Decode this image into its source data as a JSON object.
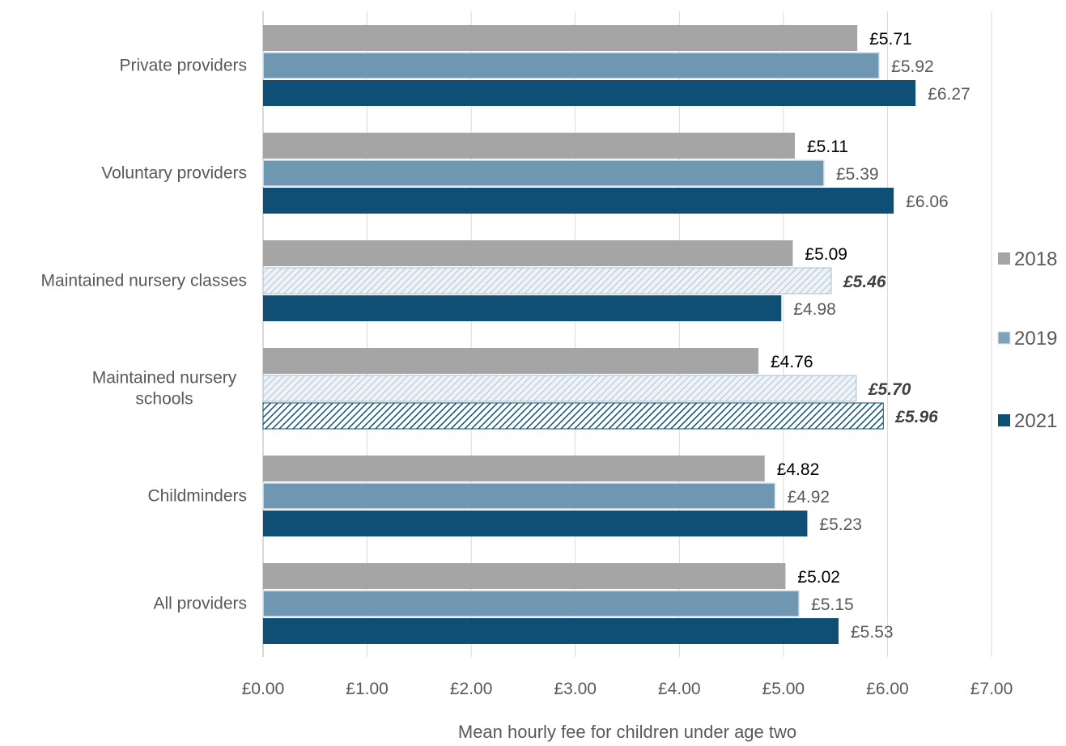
{
  "chart_data": {
    "type": "bar",
    "orientation": "horizontal",
    "title": "",
    "xlabel": "Mean hourly fee for children under age two",
    "ylabel": "",
    "xlim": [
      0,
      7
    ],
    "x_ticks": [
      "£0.00",
      "£1.00",
      "£2.00",
      "£3.00",
      "£4.00",
      "£5.00",
      "£6.00",
      "£7.00"
    ],
    "grid": "vertical",
    "legend_position": "right",
    "categories": [
      [
        "Private providers"
      ],
      [
        "Voluntary providers"
      ],
      [
        "Maintained nursery classes"
      ],
      [
        "Maintained nursery",
        "schools"
      ],
      [
        "Childminders"
      ],
      [
        "All providers"
      ]
    ],
    "series": [
      {
        "name": "2018",
        "color": "#a5a5a5",
        "values": [
          5.71,
          5.11,
          5.09,
          4.76,
          4.82,
          5.02
        ],
        "labels": [
          "£5.71",
          "£5.11",
          "£5.09",
          "£4.76",
          "£4.82",
          "£5.02"
        ],
        "hatched": [
          false,
          false,
          false,
          false,
          false,
          false
        ]
      },
      {
        "name": "2019",
        "color": "#6f97b2",
        "values": [
          5.92,
          5.39,
          5.46,
          5.7,
          4.92,
          5.15
        ],
        "labels": [
          "£5.92",
          "£5.39",
          "£5.46",
          "£5.70",
          "£4.92",
          "£5.15"
        ],
        "hatched": [
          false,
          false,
          true,
          true,
          false,
          false
        ]
      },
      {
        "name": "2021",
        "color": "#104f75",
        "values": [
          6.27,
          6.06,
          4.98,
          5.96,
          5.23,
          5.53
        ],
        "labels": [
          "£6.27",
          "£6.06",
          "£4.98",
          "£5.96",
          "£5.23",
          "£5.53"
        ],
        "hatched": [
          false,
          false,
          false,
          true,
          false,
          false
        ]
      }
    ]
  }
}
